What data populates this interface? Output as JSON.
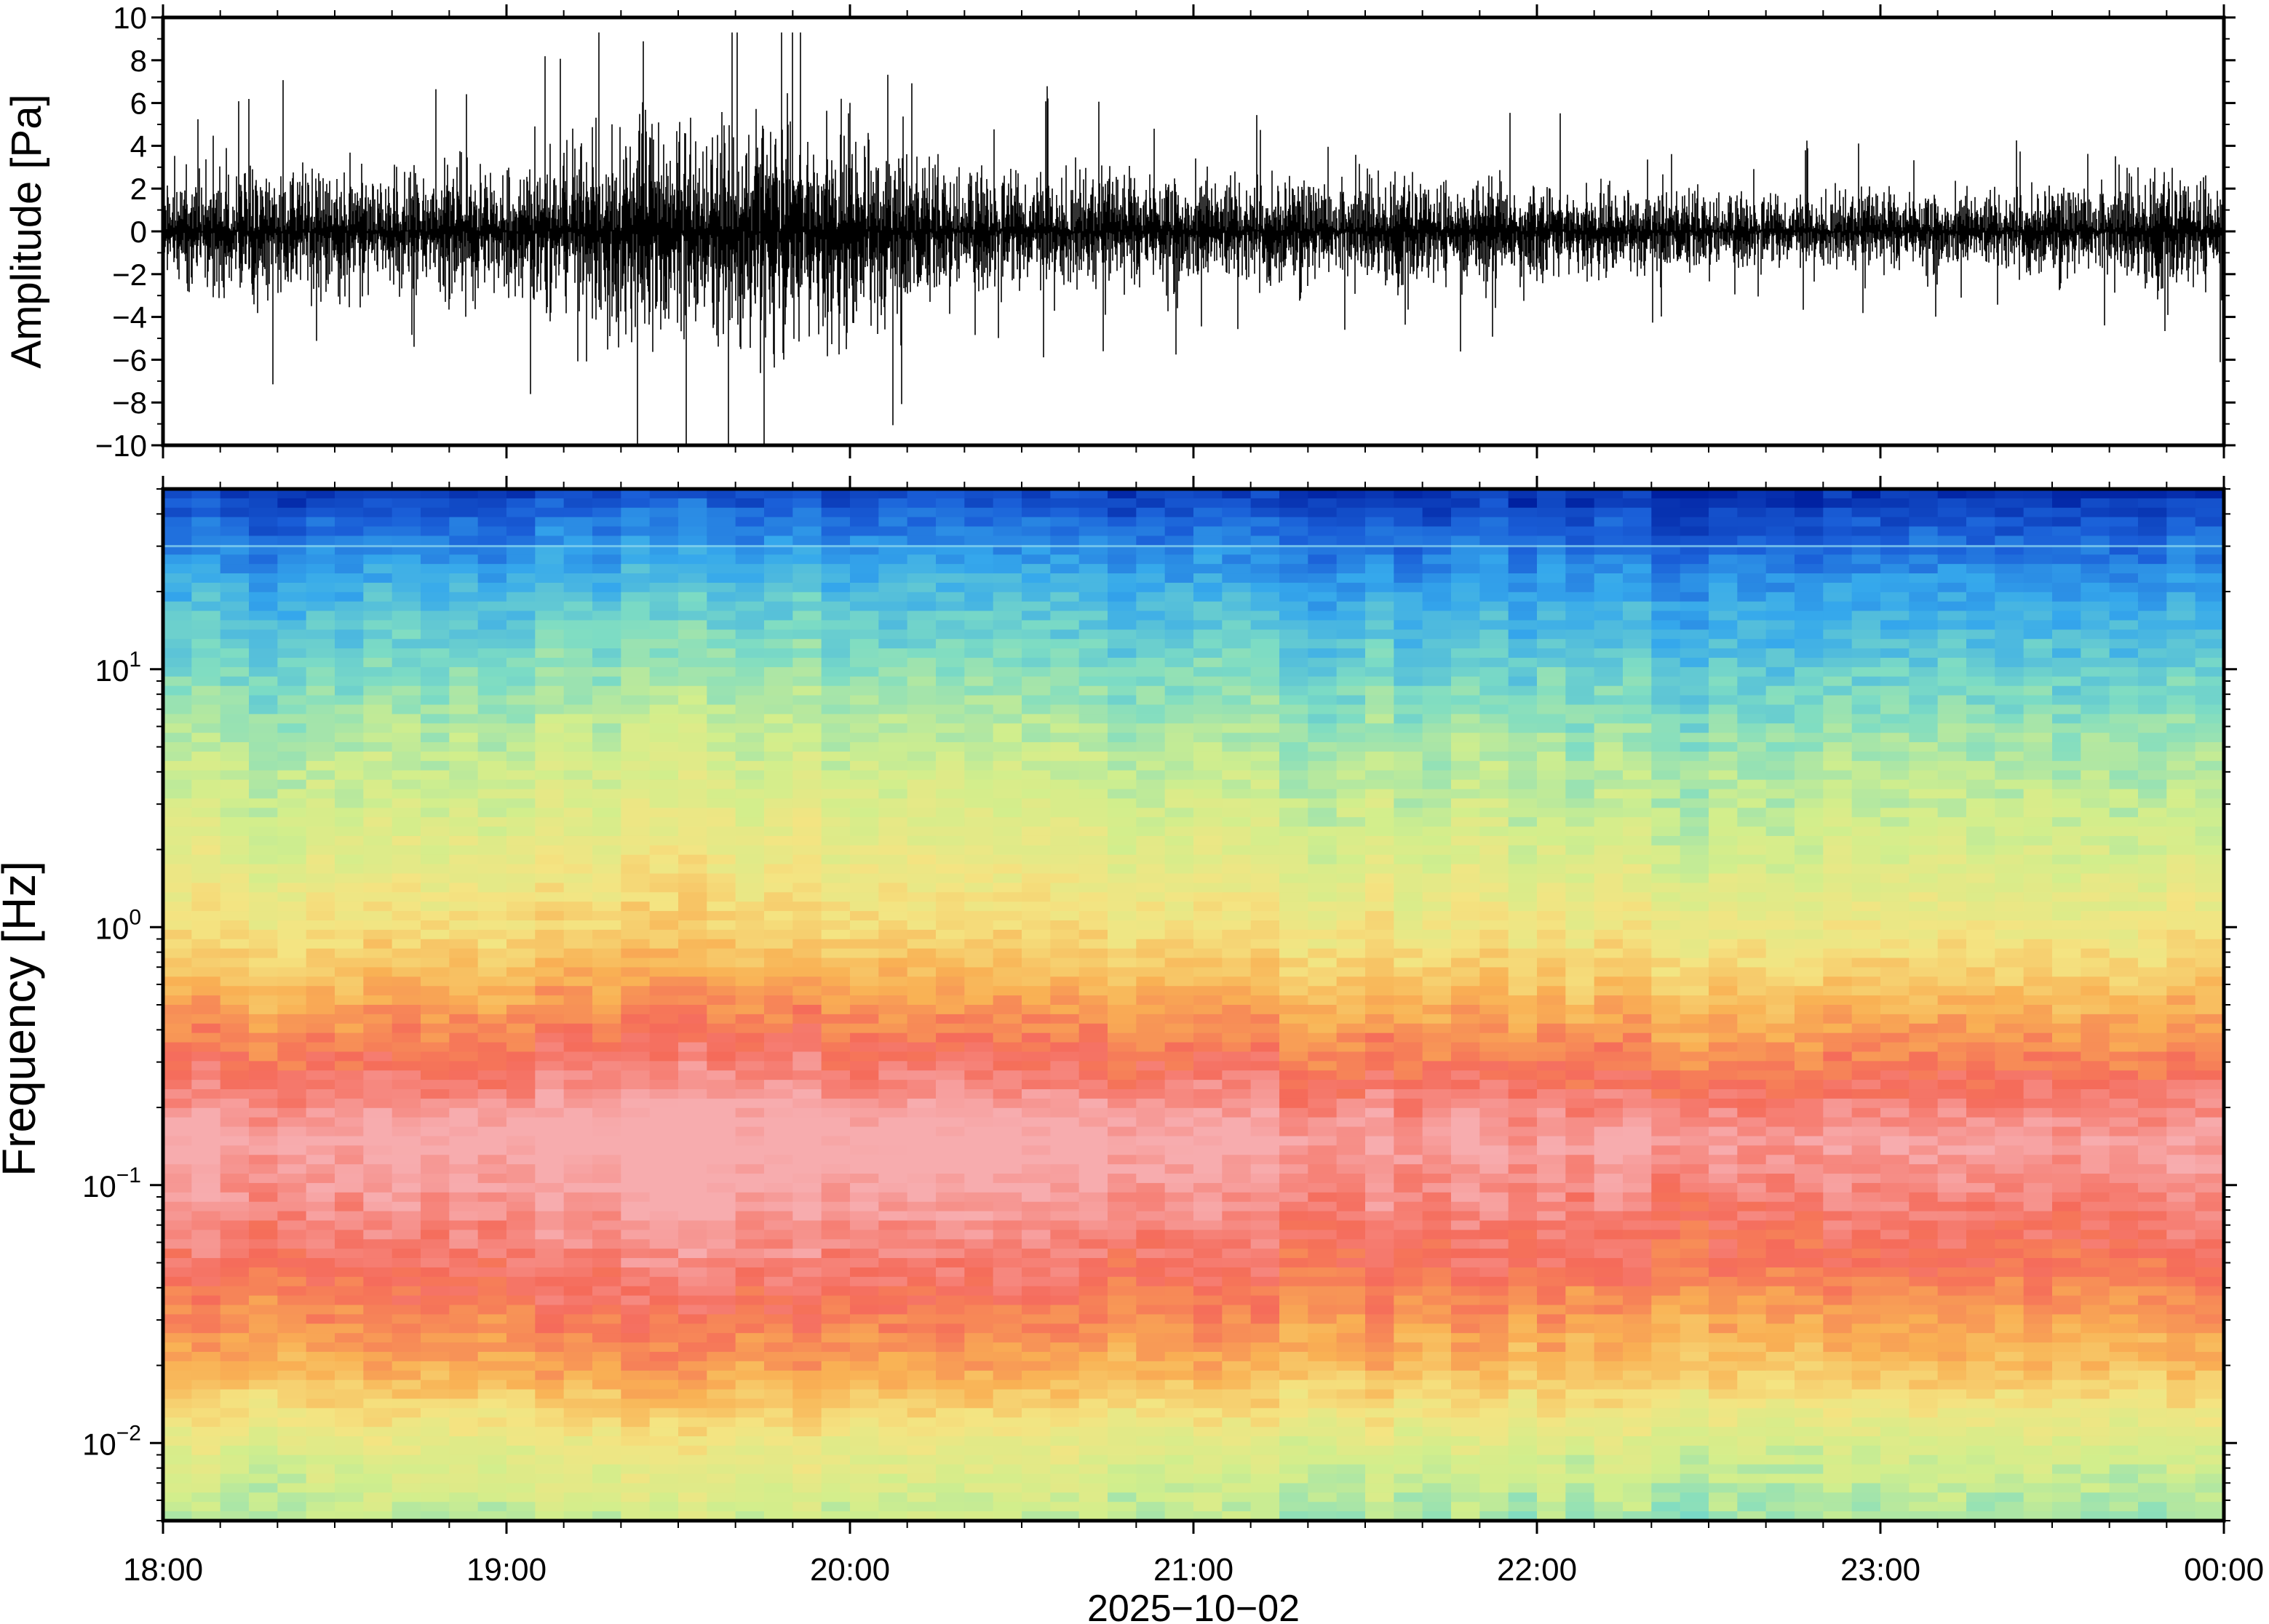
{
  "chart_data": [
    {
      "type": "line",
      "panel": "waveform",
      "ylabel": "Amplitude [Pa]",
      "ylim": [
        -10,
        10
      ],
      "yticks": [
        -10,
        -8,
        -6,
        -4,
        -2,
        0,
        2,
        4,
        6,
        8,
        10
      ],
      "ytick_labels": [
        "−10",
        "−8",
        "−6",
        "−4",
        "−2",
        "0",
        "2",
        "4",
        "6",
        "8",
        "10"
      ],
      "xlim": [
        "18:00",
        "00:00"
      ],
      "series": [
        {
          "color": "#000000",
          "x": [
            "18:00",
            "18:15",
            "18:30",
            "18:45",
            "19:00",
            "19:15",
            "19:30",
            "19:45",
            "20:00",
            "20:15",
            "20:30",
            "20:45",
            "21:00",
            "21:15",
            "21:30",
            "21:45",
            "22:00",
            "22:15",
            "22:30",
            "22:45",
            "23:00",
            "23:15",
            "23:30",
            "23:45",
            "00:00"
          ],
          "envelope_pa": [
            2.5,
            3.0,
            2.8,
            2.6,
            3.2,
            4.5,
            5.0,
            5.5,
            5.2,
            3.0,
            2.8,
            2.6,
            2.6,
            2.4,
            2.5,
            2.3,
            2.3,
            2.0,
            1.8,
            1.7,
            1.8,
            1.8,
            2.0,
            2.6,
            2.5
          ],
          "peak_max_pa": 9.3,
          "peak_min_pa": -10
        }
      ]
    },
    {
      "type": "heatmap",
      "panel": "spectrogram",
      "ylabel": "Frequency [Hz]",
      "yscale": "log",
      "ylim_hz": [
        0.005,
        50
      ],
      "yticks_hz": [
        0.01,
        0.1,
        1,
        10
      ],
      "ytick_labels": [
        {
          "base": "10",
          "exp": "−2"
        },
        {
          "base": "10",
          "exp": "−1"
        },
        {
          "base": "10",
          "exp": "0"
        },
        {
          "base": "10",
          "exp": "1"
        }
      ],
      "x_tick_labels": [
        "18:00",
        "19:00",
        "20:00",
        "21:00",
        "22:00",
        "23:00",
        "00:00"
      ],
      "xlabel": "2025−10−02",
      "colormap_low_to_high": [
        "#0020a0",
        "#1a5fd8",
        "#35a8ec",
        "#7ddcc4",
        "#d2ee8c",
        "#f4e482",
        "#f9b154",
        "#f56b5a",
        "#f7acae"
      ],
      "level_profile": {
        "freq_hz": [
          0.005,
          0.01,
          0.02,
          0.05,
          0.15,
          0.3,
          0.6,
          1,
          2,
          5,
          10,
          20,
          35,
          50
        ],
        "level": [
          0.45,
          0.55,
          0.74,
          0.88,
          1.0,
          0.86,
          0.72,
          0.62,
          0.54,
          0.45,
          0.36,
          0.26,
          0.14,
          0.04
        ]
      },
      "time_modulation": {
        "x": [
          "18:00",
          "19:00",
          "19:30",
          "20:00",
          "21:00",
          "22:00",
          "23:00",
          "00:00"
        ],
        "offset": [
          0.0,
          0.03,
          0.05,
          0.05,
          0.0,
          -0.02,
          -0.04,
          0.01
        ]
      }
    }
  ]
}
